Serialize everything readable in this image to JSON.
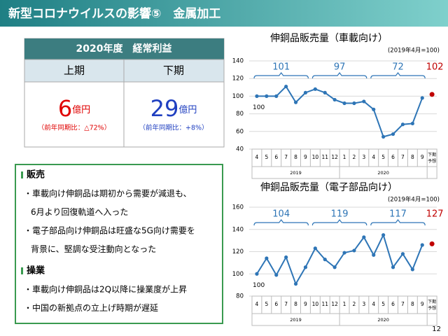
{
  "header": {
    "title": "新型コロナウイルスの影響⑤　金属加工"
  },
  "table": {
    "title": "2020年度　経常利益",
    "columns": [
      "上期",
      "下期"
    ],
    "cells": [
      {
        "value": "6",
        "unit": "億円",
        "note": "（前年同期比：△72%）"
      },
      {
        "value": "29",
        "unit": "億円",
        "note": "（前年同期比：+8%）"
      }
    ]
  },
  "notes": [
    {
      "heading": "販売",
      "items": [
        [
          "・車載向け伸銅品は期初から需要が減退も、",
          "6月より回復軌道へ入った"
        ],
        [
          "・電子部品向け伸銅品は旺盛な5G向け需要を",
          "背景に、堅調な受注動向となった"
        ]
      ]
    },
    {
      "heading": "操業",
      "items": [
        [
          "・車載向け伸銅品は2Q以降に操業度が上昇"
        ],
        [
          "・中国の新拠点の立上げ時期が遅延"
        ]
      ]
    }
  ],
  "chart_data": [
    {
      "type": "line",
      "title": "伸銅品販売量（車載向け）",
      "subtitle": "(2019年4月=100)",
      "categories": [
        "4",
        "5",
        "6",
        "7",
        "8",
        "9",
        "10",
        "11",
        "12",
        "1",
        "2",
        "3",
        "4",
        "5",
        "6",
        "7",
        "8",
        "9",
        "下期予想"
      ],
      "values": [
        100,
        100,
        100,
        111,
        93,
        104,
        108,
        104,
        96,
        92,
        92,
        94,
        85,
        54,
        57,
        68,
        69,
        98,
        null
      ],
      "forecast": 102,
      "period_labels": [
        101,
        97,
        72
      ],
      "base_label": "100",
      "year_labels": [
        "2019",
        "2020"
      ],
      "ylim": [
        40,
        140
      ],
      "yticks": [
        40,
        60,
        80,
        100,
        120,
        140
      ],
      "color": "#2e75b6",
      "forecast_color": "#c00000",
      "grid": true
    },
    {
      "type": "line",
      "title": "伸銅品販売量（電子部品向け）",
      "subtitle": "(2019年4月=100)",
      "categories": [
        "4",
        "5",
        "6",
        "7",
        "8",
        "9",
        "10",
        "11",
        "12",
        "1",
        "2",
        "3",
        "4",
        "5",
        "6",
        "7",
        "8",
        "9",
        "下期予想"
      ],
      "values": [
        100,
        114,
        99,
        115,
        91,
        106,
        123,
        113,
        106,
        119,
        121,
        133,
        117,
        135,
        106,
        118,
        104,
        126,
        null
      ],
      "forecast": 127,
      "period_labels": [
        104,
        119,
        117
      ],
      "base_label": "100",
      "year_labels": [
        "2019",
        "2020"
      ],
      "ylim": [
        80,
        160
      ],
      "yticks": [
        80,
        100,
        120,
        140,
        160
      ],
      "color": "#2e75b6",
      "forecast_color": "#c00000",
      "grid": true
    }
  ],
  "page_number": "12"
}
